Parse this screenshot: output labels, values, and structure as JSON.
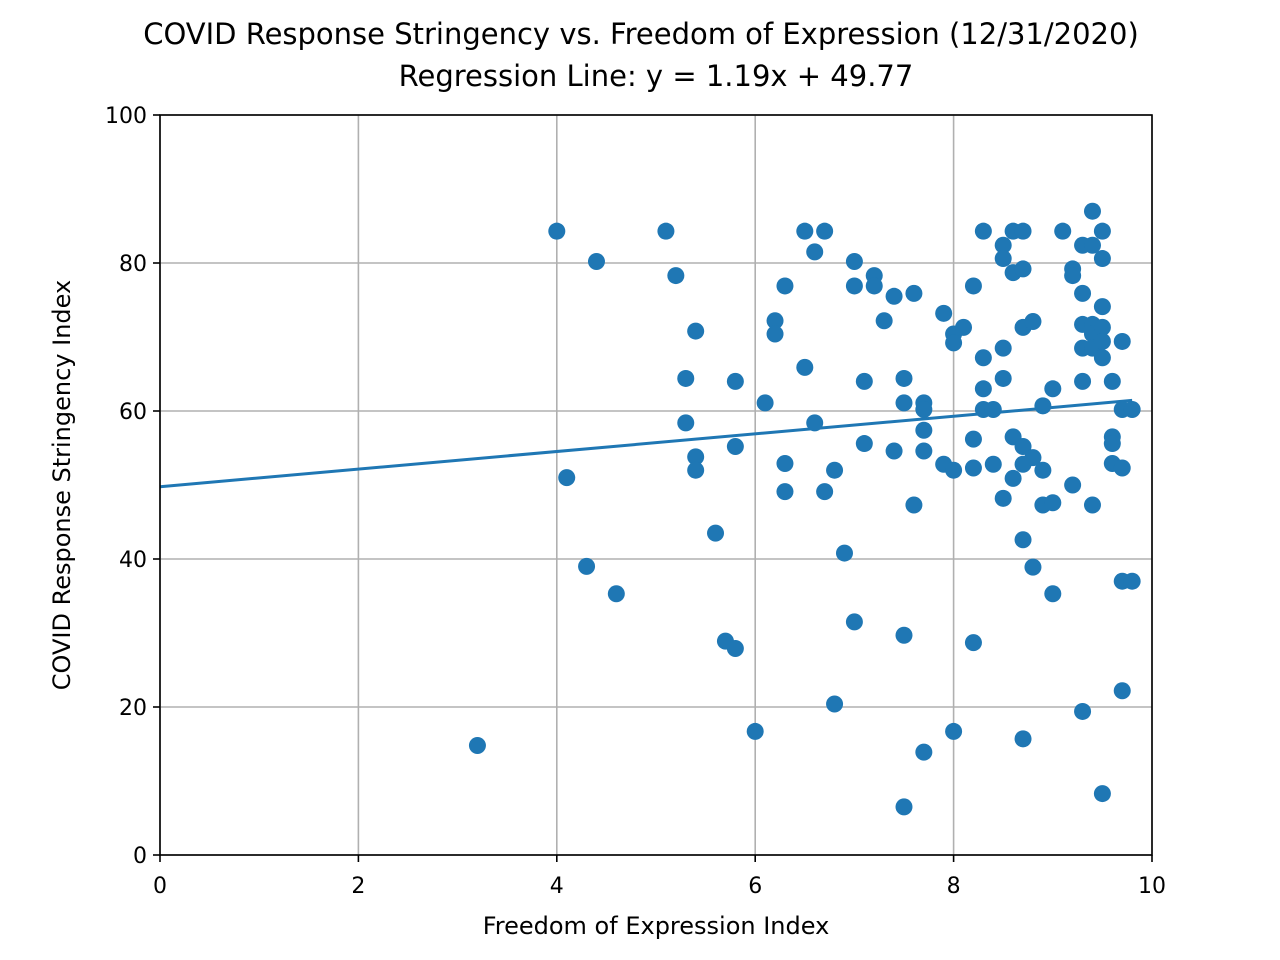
{
  "chart_data": {
    "type": "scatter",
    "title": "COVID Response Stringency vs. Freedom of Expression (12/31/2020)",
    "subtitle": "Regression Line: y = 1.19x + 49.77",
    "xlabel": "Freedom of Expression Index",
    "ylabel": "COVID Response Stringency Index",
    "xlim": [
      0,
      10
    ],
    "ylim": [
      0,
      100
    ],
    "xticks": [
      0,
      2,
      4,
      6,
      8,
      10
    ],
    "yticks": [
      0,
      20,
      40,
      60,
      80,
      100
    ],
    "grid": true,
    "color": "#1f77b4",
    "regression": {
      "slope": 1.19,
      "intercept": 49.77
    },
    "points": [
      [
        3.2,
        14.8
      ],
      [
        4.0,
        84.3
      ],
      [
        4.1,
        51.0
      ],
      [
        4.3,
        39.0
      ],
      [
        4.4,
        80.2
      ],
      [
        4.6,
        35.3
      ],
      [
        5.1,
        84.3
      ],
      [
        5.2,
        78.3
      ],
      [
        5.3,
        64.4
      ],
      [
        5.3,
        58.4
      ],
      [
        5.4,
        70.8
      ],
      [
        5.4,
        53.8
      ],
      [
        5.4,
        52.0
      ],
      [
        5.6,
        43.5
      ],
      [
        5.7,
        28.9
      ],
      [
        5.8,
        27.9
      ],
      [
        5.8,
        64.0
      ],
      [
        5.8,
        55.2
      ],
      [
        6.0,
        16.7
      ],
      [
        6.1,
        61.1
      ],
      [
        6.2,
        72.2
      ],
      [
        6.2,
        70.4
      ],
      [
        6.3,
        76.9
      ],
      [
        6.3,
        52.9
      ],
      [
        6.3,
        49.1
      ],
      [
        6.5,
        84.3
      ],
      [
        6.5,
        65.9
      ],
      [
        6.6,
        81.5
      ],
      [
        6.6,
        58.4
      ],
      [
        6.7,
        84.3
      ],
      [
        6.7,
        49.1
      ],
      [
        6.8,
        52.0
      ],
      [
        6.8,
        20.4
      ],
      [
        6.9,
        40.8
      ],
      [
        7.0,
        80.2
      ],
      [
        7.0,
        76.9
      ],
      [
        7.0,
        31.5
      ],
      [
        7.1,
        64.0
      ],
      [
        7.1,
        55.6
      ],
      [
        7.2,
        78.3
      ],
      [
        7.2,
        76.9
      ],
      [
        7.3,
        72.2
      ],
      [
        7.4,
        75.5
      ],
      [
        7.4,
        54.6
      ],
      [
        7.5,
        64.4
      ],
      [
        7.5,
        61.1
      ],
      [
        7.5,
        29.7
      ],
      [
        7.5,
        6.5
      ],
      [
        7.6,
        75.9
      ],
      [
        7.6,
        47.3
      ],
      [
        7.7,
        61.1
      ],
      [
        7.7,
        60.2
      ],
      [
        7.7,
        57.4
      ],
      [
        7.7,
        54.6
      ],
      [
        7.7,
        13.9
      ],
      [
        7.9,
        73.2
      ],
      [
        7.9,
        52.8
      ],
      [
        8.0,
        70.4
      ],
      [
        8.0,
        69.2
      ],
      [
        8.0,
        52.0
      ],
      [
        8.0,
        16.7
      ],
      [
        8.1,
        71.3
      ],
      [
        8.2,
        76.9
      ],
      [
        8.2,
        56.2
      ],
      [
        8.2,
        52.3
      ],
      [
        8.2,
        28.7
      ],
      [
        8.3,
        84.3
      ],
      [
        8.3,
        67.2
      ],
      [
        8.3,
        63.0
      ],
      [
        8.3,
        60.2
      ],
      [
        8.4,
        60.2
      ],
      [
        8.4,
        52.8
      ],
      [
        8.5,
        82.4
      ],
      [
        8.5,
        80.6
      ],
      [
        8.5,
        68.5
      ],
      [
        8.5,
        64.4
      ],
      [
        8.5,
        48.2
      ],
      [
        8.6,
        84.3
      ],
      [
        8.6,
        78.7
      ],
      [
        8.6,
        56.5
      ],
      [
        8.6,
        50.9
      ],
      [
        8.7,
        84.3
      ],
      [
        8.7,
        79.2
      ],
      [
        8.7,
        71.3
      ],
      [
        8.7,
        55.2
      ],
      [
        8.7,
        52.8
      ],
      [
        8.7,
        42.6
      ],
      [
        8.7,
        15.7
      ],
      [
        8.8,
        72.1
      ],
      [
        8.8,
        53.7
      ],
      [
        8.8,
        38.9
      ],
      [
        8.9,
        60.7
      ],
      [
        8.9,
        52.0
      ],
      [
        8.9,
        47.3
      ],
      [
        9.0,
        63.0
      ],
      [
        9.0,
        47.6
      ],
      [
        9.0,
        35.3
      ],
      [
        9.1,
        84.3
      ],
      [
        9.2,
        79.2
      ],
      [
        9.2,
        78.3
      ],
      [
        9.2,
        50.0
      ],
      [
        9.3,
        82.4
      ],
      [
        9.3,
        75.9
      ],
      [
        9.3,
        71.7
      ],
      [
        9.3,
        68.5
      ],
      [
        9.3,
        64.0
      ],
      [
        9.3,
        19.4
      ],
      [
        9.4,
        87.0
      ],
      [
        9.4,
        82.4
      ],
      [
        9.4,
        71.7
      ],
      [
        9.4,
        70.4
      ],
      [
        9.4,
        68.5
      ],
      [
        9.4,
        47.3
      ],
      [
        9.5,
        84.3
      ],
      [
        9.5,
        80.6
      ],
      [
        9.5,
        74.1
      ],
      [
        9.5,
        71.3
      ],
      [
        9.5,
        69.4
      ],
      [
        9.5,
        67.2
      ],
      [
        9.5,
        8.3
      ],
      [
        9.6,
        64.0
      ],
      [
        9.6,
        56.5
      ],
      [
        9.6,
        55.6
      ],
      [
        9.6,
        52.9
      ],
      [
        9.7,
        69.4
      ],
      [
        9.7,
        60.2
      ],
      [
        9.7,
        52.3
      ],
      [
        9.7,
        37.0
      ],
      [
        9.7,
        22.2
      ],
      [
        9.8,
        60.2
      ],
      [
        9.8,
        37.0
      ]
    ]
  }
}
